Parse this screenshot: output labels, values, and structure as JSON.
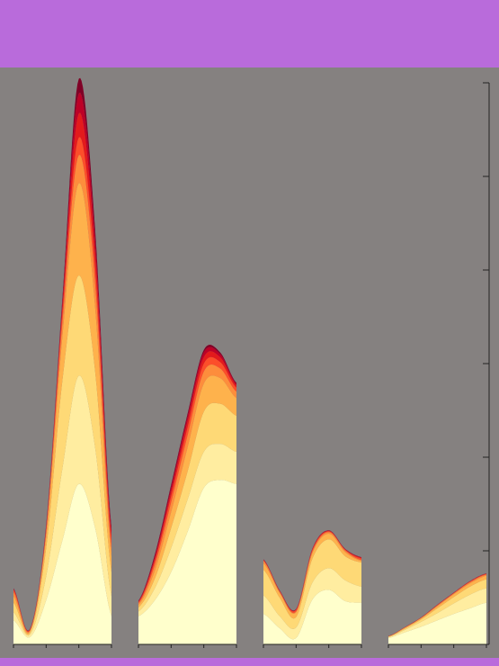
{
  "colors": {
    "page_background": "#b96bdb",
    "plot_background": "#858180",
    "axis": "#222222"
  },
  "chart_data": {
    "type": "area",
    "stacked": true,
    "streamgraph_style": "small-multiples",
    "title": "",
    "xlabel": "",
    "ylabel": "",
    "grid": false,
    "legend": "none",
    "palette": [
      "#ffffcc",
      "#ffeda0",
      "#fed976",
      "#feb24c",
      "#fd8d3c",
      "#fc4e2a",
      "#e31a1c",
      "#bd0026",
      "#800026"
    ],
    "y_axis": {
      "position": "right",
      "tick_count": 7,
      "ylim": [
        0,
        70
      ]
    },
    "panels": [
      {
        "name": "",
        "x": [
          0,
          0.5,
          1,
          1.5,
          2,
          2.5,
          3
        ],
        "series": [
          {
            "name": "",
            "values": [
              3.0,
              0.9,
              5.5,
              13.0,
              20.0,
              14.5,
              3.5
            ]
          },
          {
            "name": "",
            "values": [
              1.0,
              0.3,
              3.0,
              9.0,
              13.5,
              10.0,
              2.5
            ]
          },
          {
            "name": "",
            "values": [
              1.2,
              0.2,
              3.5,
              11.0,
              12.5,
              9.5,
              3.0
            ]
          },
          {
            "name": "",
            "values": [
              0.8,
              0.2,
              1.5,
              5.5,
              11.5,
              8.0,
              2.0
            ]
          },
          {
            "name": "",
            "values": [
              0.5,
              0.1,
              0.5,
              1.8,
              3.5,
              3.0,
              1.0
            ]
          },
          {
            "name": "",
            "values": [
              0.3,
              0.1,
              0.4,
              1.2,
              2.2,
              2.0,
              1.0
            ]
          },
          {
            "name": "",
            "values": [
              0.1,
              0.05,
              0.2,
              0.8,
              3.0,
              2.0,
              0.7
            ]
          },
          {
            "name": "",
            "values": [
              0.05,
              0.02,
              0.2,
              0.6,
              2.5,
              1.5,
              0.5
            ]
          },
          {
            "name": "",
            "values": [
              0.05,
              0.03,
              0.1,
              0.4,
              1.8,
              1.2,
              0.4
            ]
          }
        ]
      },
      {
        "name": "",
        "x": [
          0,
          0.5,
          1,
          1.5,
          2,
          2.5,
          3
        ],
        "series": [
          {
            "name": "",
            "values": [
              3.5,
              5.5,
              9.0,
              14.0,
              19.5,
              20.5,
              20.0
            ]
          },
          {
            "name": "",
            "values": [
              0.6,
              1.5,
              3.0,
              4.0,
              4.5,
              4.5,
              4.0
            ]
          },
          {
            "name": "",
            "values": [
              0.5,
              1.2,
              2.5,
              3.5,
              5.0,
              5.0,
              4.5
            ]
          },
          {
            "name": "",
            "values": [
              0.3,
              1.0,
              2.0,
              3.0,
              3.5,
              3.2,
              2.2
            ]
          },
          {
            "name": "",
            "values": [
              0.2,
              0.7,
              1.2,
              1.5,
              1.5,
              1.2,
              0.8
            ]
          },
          {
            "name": "",
            "values": [
              0.15,
              0.5,
              0.8,
              1.0,
              1.0,
              0.8,
              0.5
            ]
          },
          {
            "name": "",
            "values": [
              0.1,
              0.3,
              0.6,
              0.8,
              0.8,
              0.6,
              0.3
            ]
          },
          {
            "name": "",
            "values": [
              0.05,
              0.3,
              0.5,
              0.6,
              0.6,
              0.4,
              0.2
            ]
          },
          {
            "name": "",
            "values": [
              0.05,
              0.2,
              0.3,
              0.3,
              0.3,
              0.2,
              0.1
            ]
          }
        ]
      },
      {
        "name": "",
        "x": [
          0,
          0.5,
          1,
          1.5,
          2,
          2.5,
          3
        ],
        "series": [
          {
            "name": "",
            "values": [
              3.8,
              2.0,
              0.8,
              5.6,
              6.8,
              5.4,
              5.2
            ]
          },
          {
            "name": "",
            "values": [
              2.3,
              1.5,
              1.3,
              2.1,
              2.7,
              2.6,
              2.0
            ]
          },
          {
            "name": "",
            "values": [
              3.2,
              2.3,
              1.3,
              3.0,
              3.6,
              3.0,
              3.0
            ]
          },
          {
            "name": "",
            "values": [
              0.8,
              0.6,
              0.6,
              0.7,
              0.7,
              0.5,
              0.2
            ]
          },
          {
            "name": "",
            "values": [
              0.3,
              0.1,
              0.1,
              0.2,
              0.2,
              0.2,
              0.1
            ]
          },
          {
            "name": "",
            "values": [
              0.1,
              0.1,
              0.2,
              0.2,
              0.1,
              0.1,
              0.2
            ]
          },
          {
            "name": "",
            "values": [
              0.05,
              0.05,
              0.05,
              0.1,
              0.05,
              0.05,
              0.1
            ]
          },
          {
            "name": "",
            "values": [
              0.05,
              0.05,
              0.05,
              0.05,
              0.05,
              0.05,
              0.05
            ]
          },
          {
            "name": "",
            "values": [
              0.02,
              0.02,
              0.02,
              0.02,
              0.02,
              0.02,
              0.02
            ]
          }
        ]
      },
      {
        "name": "",
        "x": [
          0,
          0.5,
          1,
          1.5,
          2,
          2.5,
          3
        ],
        "series": [
          {
            "name": "",
            "values": [
              0.8,
              1.5,
              2.2,
              3.0,
              3.8,
              4.5,
              5.2
            ]
          },
          {
            "name": "",
            "values": [
              0.1,
              0.3,
              0.6,
              0.9,
              1.3,
              1.7,
              1.8
            ]
          },
          {
            "name": "",
            "values": [
              0.05,
              0.15,
              0.3,
              0.6,
              0.8,
              1.0,
              1.1
            ]
          },
          {
            "name": "",
            "values": [
              0.05,
              0.1,
              0.15,
              0.25,
              0.35,
              0.4,
              0.45
            ]
          },
          {
            "name": "",
            "values": [
              0.02,
              0.05,
              0.05,
              0.1,
              0.1,
              0.15,
              0.15
            ]
          },
          {
            "name": "",
            "values": [
              0.01,
              0.02,
              0.03,
              0.05,
              0.05,
              0.08,
              0.08
            ]
          },
          {
            "name": "",
            "values": [
              0.01,
              0.01,
              0.02,
              0.03,
              0.03,
              0.04,
              0.04
            ]
          },
          {
            "name": "",
            "values": [
              0.01,
              0.01,
              0.01,
              0.02,
              0.02,
              0.02,
              0.02
            ]
          },
          {
            "name": "",
            "values": [
              0.01,
              0.01,
              0.01,
              0.01,
              0.01,
              0.01,
              0.01
            ]
          }
        ]
      }
    ]
  }
}
